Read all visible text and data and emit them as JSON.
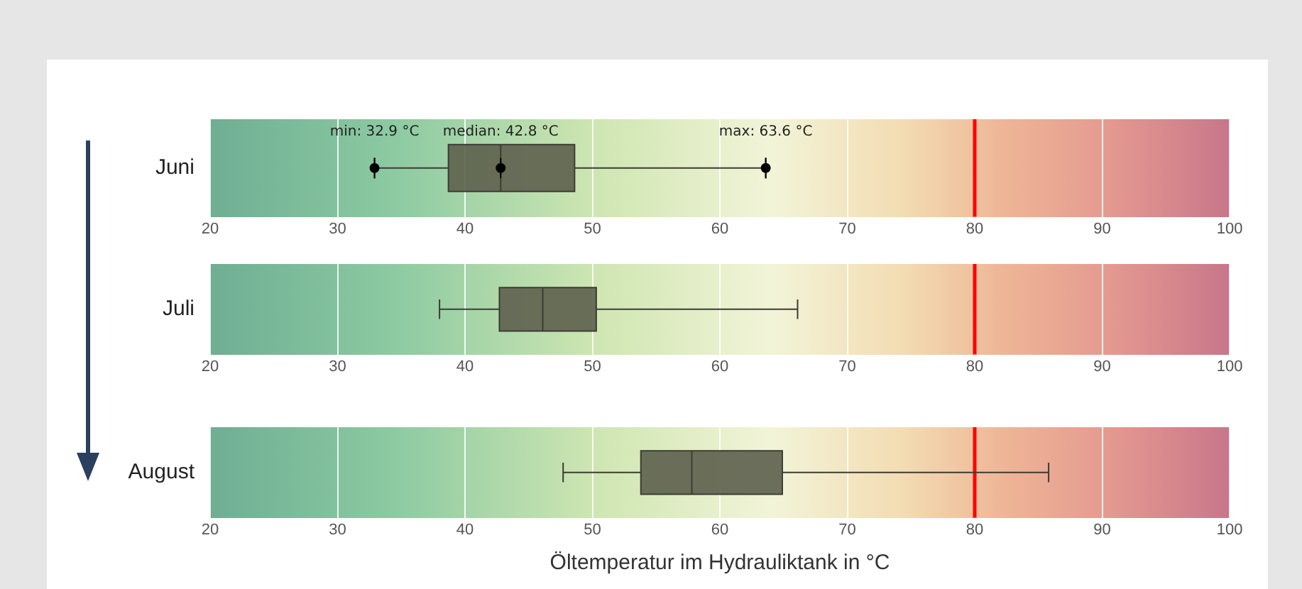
{
  "chart_data": [
    {
      "type": "box",
      "orientation": "horizontal",
      "categories": [
        "Juni"
      ],
      "color": "#5f634f",
      "boxes": [
        {
          "low": 32.9,
          "q1": 38.7,
          "median": 42.8,
          "q3": 48.6,
          "high": 63.6
        }
      ],
      "xlim": [
        20,
        100
      ],
      "xticks": [
        20,
        30,
        40,
        50,
        60,
        70,
        80,
        90,
        100
      ],
      "grid": "x",
      "marker": "circle",
      "ref_lines": [
        {
          "axis": "x",
          "value": 80,
          "color": "#ff0000"
        }
      ],
      "annotations": [
        {
          "text": "min: 32.9 °C",
          "x": 32.9,
          "y": "Juni"
        },
        {
          "text": "median: 42.8 °C",
          "x": 42.8,
          "y": "Juni"
        },
        {
          "text": "max: 63.6 °C",
          "x": 63.6,
          "y": "Juni"
        }
      ]
    },
    {
      "type": "box",
      "orientation": "horizontal",
      "categories": [
        "Juli"
      ],
      "color": "#5f634f",
      "boxes": [
        {
          "low": 38.0,
          "q1": 42.7,
          "median": 46.1,
          "q3": 50.3,
          "high": 66.1
        }
      ],
      "xlim": [
        20,
        100
      ],
      "xticks": [
        20,
        30,
        40,
        50,
        60,
        70,
        80,
        90,
        100
      ],
      "grid": "x",
      "ref_lines": [
        {
          "axis": "x",
          "value": 80,
          "color": "#ff0000"
        }
      ]
    },
    {
      "type": "box",
      "orientation": "horizontal",
      "categories": [
        "August"
      ],
      "color": "#5f634f",
      "boxes": [
        {
          "low": 47.7,
          "q1": 53.8,
          "median": 57.8,
          "q3": 64.9,
          "high": 85.8
        }
      ],
      "xlim": [
        20,
        100
      ],
      "xticks": [
        20,
        30,
        40,
        50,
        60,
        70,
        80,
        90,
        100
      ],
      "grid": "x",
      "xlabel": "Öltemperatur im Hydrauliktank in °C",
      "ref_lines": [
        {
          "axis": "x",
          "value": 80,
          "color": "#ff0000"
        }
      ]
    }
  ]
}
